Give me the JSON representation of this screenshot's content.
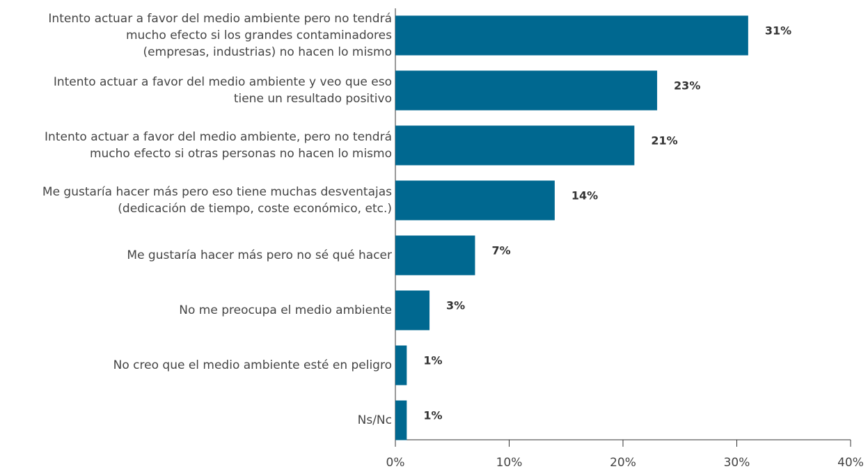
{
  "chart_data": {
    "type": "barh",
    "categories": [
      "Intento actuar a favor del medio ambiente pero no tendrá\nmucho efecto si los grandes contaminadores\n(empresas, industrias) no hacen lo mismo",
      "Intento actuar a favor del medio ambiente y veo que eso\ntiene un resultado positivo",
      "Intento actuar a favor del medio ambiente, pero no tendrá\nmucho efecto si otras personas no hacen lo mismo",
      "Me gustaría hacer más pero eso tiene muchas desventajas\n(dedicación de tiempo, coste económico, etc.)",
      "Me gustaría hacer más pero no sé qué hacer",
      "No me preocupa el medio ambiente",
      "No creo que el medio ambiente esté en peligro",
      "Ns/Nc"
    ],
    "values": [
      31,
      23,
      21,
      14,
      7,
      3,
      1,
      1
    ],
    "value_labels": [
      "31%",
      "23%",
      "21%",
      "14%",
      "7%",
      "3%",
      "1%",
      "1%"
    ],
    "color": "#006890",
    "xlim": [
      0,
      40
    ],
    "xticks": [
      {
        "value": 0,
        "label": "0%"
      },
      {
        "value": 10,
        "label": "10%"
      },
      {
        "value": 20,
        "label": "20%"
      },
      {
        "value": 30,
        "label": "30%"
      },
      {
        "value": 40,
        "label": "40%"
      }
    ]
  }
}
